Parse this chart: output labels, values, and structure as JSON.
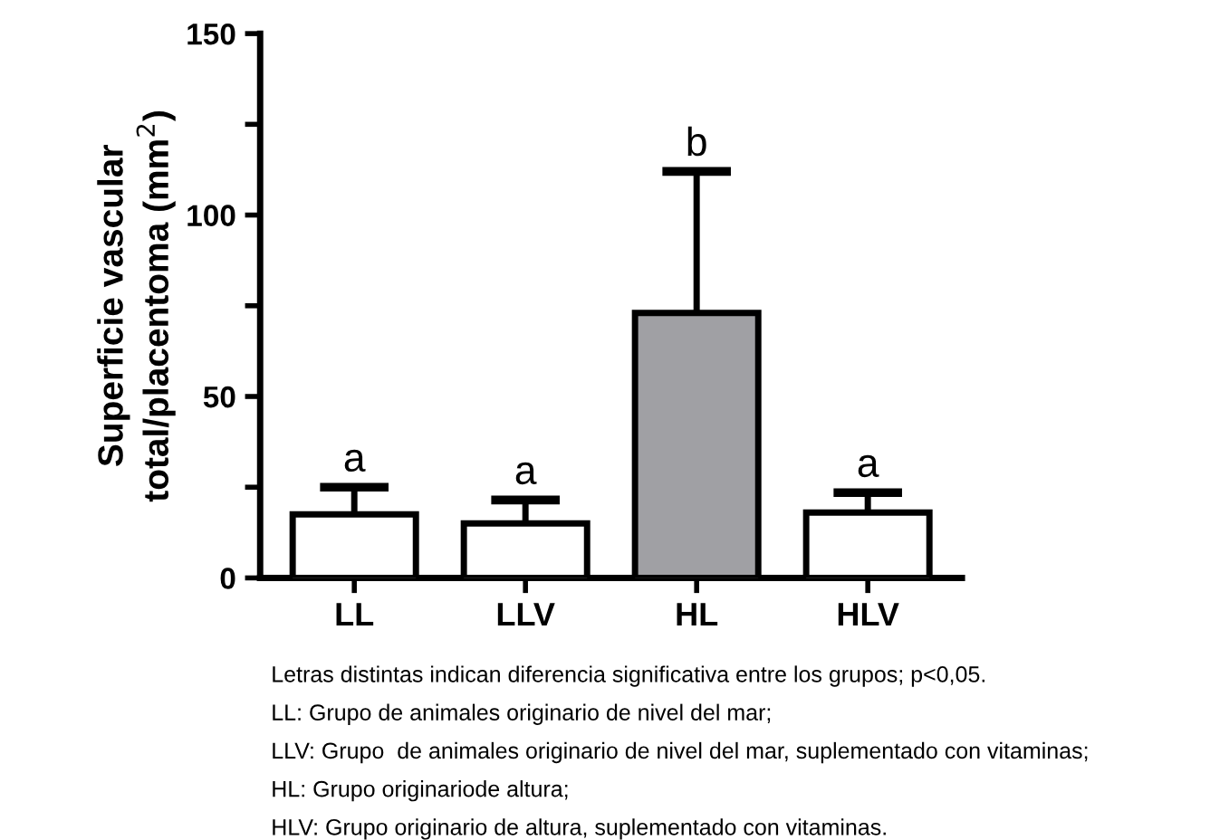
{
  "chart_data": {
    "type": "bar",
    "categories": [
      "LL",
      "LLV",
      "HL",
      "HLV"
    ],
    "values": [
      17.5,
      15,
      73,
      18
    ],
    "colors": [
      "#ffffff",
      "#ffffff",
      "#a0a0a4",
      "#ffffff"
    ],
    "errors": [
      [
        17.5,
        25
      ],
      [
        15,
        21.5
      ],
      [
        73,
        112
      ],
      [
        18,
        23.5
      ]
    ],
    "ylabel": "Superficie vascular\ntotal/placentoma (mm$^{2}$)",
    "ylim": [
      0,
      150
    ],
    "yticks": [
      0,
      {
        "value": 25,
        "label": null
      },
      50,
      {
        "value": 75,
        "label": null
      },
      100,
      {
        "value": 125,
        "label": null
      },
      150
    ],
    "grid": false,
    "annotations": [
      {
        "text": "a",
        "x": "LL",
        "y": 25
      },
      {
        "text": "a",
        "x": "LLV",
        "y": 21.5
      },
      {
        "text": "b",
        "x": "HL",
        "y": 112
      },
      {
        "text": "a",
        "x": "HLV",
        "y": 23.5
      },
      "Letras distintas indican diferencia significativa entre los grupos; p<0,05.",
      "LL: Grupo de animales originario de nivel del mar;",
      "LLV: Grupo  de animales originario de nivel del mar, suplementado con vitaminas;",
      "HL: Grupo originariode altura;",
      "HLV: Grupo originario de altura, suplementado con vitaminas."
    ]
  }
}
